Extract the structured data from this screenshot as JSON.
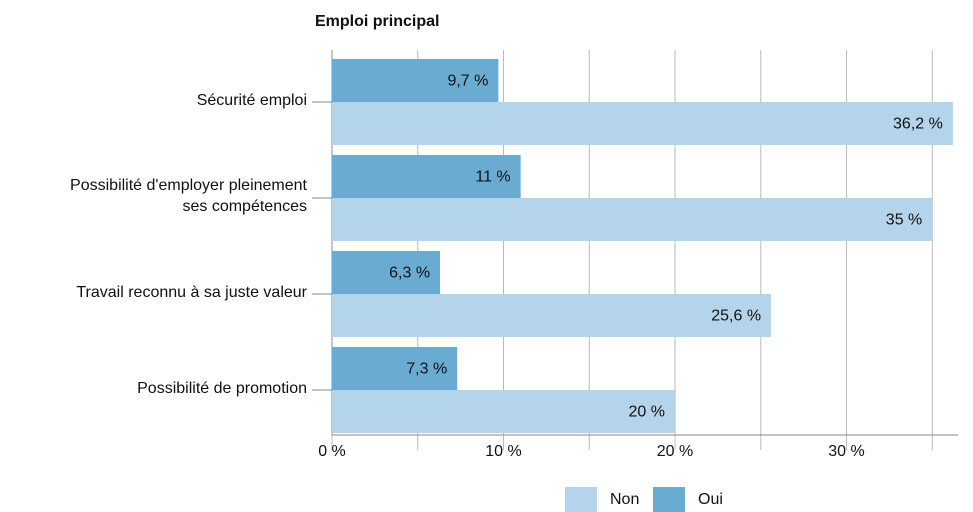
{
  "chart_data": {
    "type": "hbar",
    "title": "Emploi principal",
    "categories": [
      [
        "Sécurité emploi"
      ],
      [
        "Possibilité d'employer pleinement",
        "ses compétences"
      ],
      [
        "Travail reconnu à sa juste valeur"
      ],
      [
        "Possibilité de promotion"
      ]
    ],
    "series": [
      {
        "name": "Non",
        "color": "#b3d4ea",
        "values": [
          36.2,
          35,
          25.6,
          20
        ],
        "value_labels": [
          "36,2 %",
          "35 %",
          "25,6 %",
          "20 %"
        ]
      },
      {
        "name": "Oui",
        "color": "#6aabd2",
        "values": [
          9.7,
          11,
          6.3,
          7.3
        ],
        "value_labels": [
          "9,7 %",
          "11 %",
          "6,3 %",
          "7,3 %"
        ]
      }
    ],
    "xlim": [
      0,
      36.5
    ],
    "xticks": [
      {
        "value": 0,
        "label": "0 %"
      },
      {
        "value": 10,
        "label": "10 %"
      },
      {
        "value": 20,
        "label": "20 %"
      },
      {
        "value": 30,
        "label": "30 %"
      }
    ],
    "xminorticks": [
      5,
      15,
      25,
      35
    ],
    "grid": true
  }
}
